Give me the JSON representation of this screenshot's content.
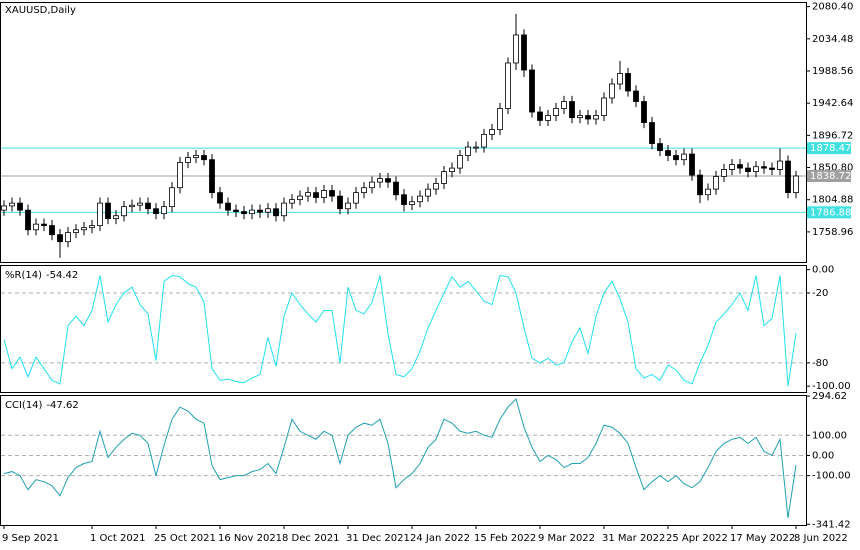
{
  "chart_data": [
    {
      "type": "candlestick",
      "title": "XAUUSD,Daily",
      "ylim": [
        1716,
        2087
      ],
      "yticks": [
        {
          "value": 2080.4,
          "label": "2080.40"
        },
        2034.48,
        1988.56,
        1942.64,
        1896.72,
        {
          "value": 1850.8,
          "label": "1850.80"
        },
        1804.88,
        1758.96
      ],
      "levels": [
        1878.47,
        1786.88
      ],
      "level_color": "#40e0e0",
      "current_price": 1838.72,
      "current_color": "#a0a0a0",
      "up_color": "#ffffff",
      "down_color": "#000000",
      "open": [
        1790,
        1796,
        1800,
        1790,
        1762,
        1770,
        1768,
        1755,
        1745,
        1758,
        1762,
        1765,
        1768,
        1800,
        1778,
        1782,
        1795,
        1797,
        1800,
        1792,
        1785,
        1795,
        1822,
        1858,
        1865,
        1868,
        1862,
        1815,
        1800,
        1790,
        1788,
        1785,
        1790,
        1787,
        1792,
        1782,
        1800,
        1805,
        1810,
        1815,
        1808,
        1818,
        1810,
        1792,
        1800,
        1815,
        1822,
        1830,
        1835,
        1830,
        1812,
        1798,
        1802,
        1810,
        1820,
        1828,
        1845,
        1850,
        1868,
        1880,
        1880,
        1898,
        1905,
        1935,
        2000,
        2040,
        1990,
        1930,
        1918,
        1925,
        1935,
        1945,
        1922,
        1925,
        1920,
        1925,
        1950,
        1970,
        1985,
        1960,
        1945,
        1915,
        1885,
        1875,
        1868,
        1862,
        1870,
        1840,
        1812,
        1820,
        1838,
        1848,
        1855,
        1850,
        1845,
        1852,
        1850,
        1848,
        1860,
        1815
      ],
      "high": [
        1804,
        1808,
        1808,
        1798,
        1778,
        1778,
        1776,
        1763,
        1766,
        1770,
        1773,
        1776,
        1808,
        1808,
        1790,
        1803,
        1805,
        1808,
        1808,
        1800,
        1803,
        1830,
        1866,
        1873,
        1876,
        1876,
        1870,
        1823,
        1808,
        1798,
        1796,
        1798,
        1798,
        1800,
        1800,
        1808,
        1813,
        1818,
        1823,
        1823,
        1826,
        1826,
        1818,
        1808,
        1823,
        1830,
        1838,
        1843,
        1843,
        1838,
        1820,
        1810,
        1818,
        1828,
        1836,
        1853,
        1858,
        1876,
        1888,
        1888,
        1906,
        1913,
        1943,
        2008,
        2070,
        2048,
        1998,
        1938,
        1933,
        1943,
        1953,
        1953,
        1933,
        1933,
        1933,
        1958,
        1978,
        2003,
        1993,
        1968,
        1953,
        1923,
        1893,
        1883,
        1876,
        1878,
        1878,
        1848,
        1828,
        1846,
        1856,
        1863,
        1863,
        1858,
        1860,
        1860,
        1858,
        1878,
        1868,
        1846
      ],
      "low": [
        1782,
        1788,
        1782,
        1754,
        1754,
        1760,
        1747,
        1722,
        1737,
        1750,
        1754,
        1757,
        1760,
        1770,
        1770,
        1774,
        1787,
        1789,
        1784,
        1777,
        1777,
        1787,
        1814,
        1850,
        1857,
        1854,
        1807,
        1792,
        1782,
        1780,
        1777,
        1777,
        1779,
        1779,
        1774,
        1774,
        1792,
        1797,
        1802,
        1800,
        1800,
        1802,
        1784,
        1784,
        1792,
        1807,
        1814,
        1822,
        1822,
        1804,
        1788,
        1790,
        1794,
        1802,
        1812,
        1820,
        1837,
        1842,
        1860,
        1872,
        1872,
        1890,
        1897,
        1927,
        1990,
        1980,
        1922,
        1910,
        1910,
        1917,
        1927,
        1914,
        1914,
        1912,
        1912,
        1917,
        1942,
        1962,
        1952,
        1937,
        1907,
        1877,
        1867,
        1860,
        1854,
        1854,
        1832,
        1800,
        1804,
        1812,
        1830,
        1840,
        1842,
        1837,
        1837,
        1842,
        1840,
        1840,
        1807,
        1807
      ],
      "close": [
        1796,
        1800,
        1790,
        1762,
        1770,
        1768,
        1755,
        1745,
        1758,
        1762,
        1765,
        1768,
        1800,
        1778,
        1782,
        1795,
        1797,
        1800,
        1792,
        1785,
        1795,
        1822,
        1858,
        1865,
        1868,
        1862,
        1815,
        1800,
        1790,
        1788,
        1785,
        1790,
        1787,
        1792,
        1782,
        1800,
        1805,
        1810,
        1815,
        1808,
        1818,
        1810,
        1792,
        1800,
        1815,
        1822,
        1830,
        1835,
        1830,
        1812,
        1798,
        1802,
        1810,
        1820,
        1828,
        1845,
        1850,
        1868,
        1880,
        1880,
        1898,
        1905,
        1935,
        2000,
        2040,
        1990,
        1930,
        1918,
        1925,
        1935,
        1945,
        1922,
        1925,
        1920,
        1925,
        1950,
        1970,
        1985,
        1960,
        1945,
        1915,
        1885,
        1875,
        1868,
        1862,
        1870,
        1840,
        1812,
        1820,
        1838,
        1848,
        1855,
        1850,
        1845,
        1852,
        1850,
        1848,
        1860,
        1815,
        1838.72
      ]
    },
    {
      "type": "line",
      "name": "%R(14)",
      "last": -54.42,
      "color": "#20e0f0",
      "ylim": [
        -105,
        4
      ],
      "yticks": [
        {
          "value": 0,
          "label": "0.00"
        },
        -20,
        -80,
        {
          "value": -100,
          "label": "-100.00"
        }
      ],
      "dashed": [
        -20,
        -80
      ],
      "values": [
        -60,
        -85,
        -75,
        -92,
        -75,
        -85,
        -95,
        -98,
        -48,
        -40,
        -48,
        -35,
        -5,
        -45,
        -30,
        -20,
        -15,
        -30,
        -38,
        -78,
        -10,
        -5,
        -6,
        -12,
        -15,
        -28,
        -85,
        -95,
        -94,
        -96,
        -97,
        -93,
        -90,
        -58,
        -83,
        -40,
        -20,
        -30,
        -38,
        -45,
        -35,
        -35,
        -80,
        -15,
        -35,
        -38,
        -28,
        -5,
        -55,
        -90,
        -92,
        -85,
        -70,
        -50,
        -35,
        -20,
        -6,
        -15,
        -10,
        -18,
        -27,
        -30,
        -5,
        -6,
        -20,
        -50,
        -76,
        -80,
        -76,
        -82,
        -80,
        -62,
        -50,
        -72,
        -40,
        -20,
        -10,
        -25,
        -45,
        -85,
        -93,
        -90,
        -95,
        -82,
        -86,
        -95,
        -98,
        -80,
        -65,
        -45,
        -38,
        -30,
        -20,
        -35,
        -5,
        -48,
        -42,
        -5,
        -100,
        -54.42
      ]
    },
    {
      "type": "line",
      "name": "CCI(14)",
      "last": -47.62,
      "color": "#1fa0b0",
      "ylim": [
        -345,
        300
      ],
      "yticks": [
        294.62,
        {
          "value": 100,
          "label": "100.00"
        },
        {
          "value": 0,
          "label": "0.00"
        },
        {
          "value": -100,
          "label": "-100.00"
        },
        -341.42
      ],
      "dashed": [
        100,
        0,
        -100
      ],
      "values": [
        -90,
        -80,
        -100,
        -170,
        -120,
        -130,
        -150,
        -200,
        -110,
        -60,
        -40,
        -30,
        120,
        -10,
        40,
        80,
        110,
        100,
        60,
        -100,
        50,
        180,
        240,
        220,
        180,
        160,
        -50,
        -120,
        -110,
        -100,
        -100,
        -80,
        -70,
        -40,
        -90,
        40,
        180,
        120,
        100,
        80,
        120,
        100,
        -40,
        100,
        140,
        160,
        150,
        180,
        60,
        -160,
        -120,
        -90,
        -40,
        40,
        80,
        180,
        160,
        120,
        110,
        120,
        100,
        90,
        180,
        240,
        280,
        140,
        40,
        -30,
        0,
        -20,
        -60,
        -40,
        -40,
        -10,
        60,
        150,
        140,
        110,
        60,
        -60,
        -170,
        -130,
        -100,
        -130,
        -100,
        -140,
        -160,
        -130,
        -60,
        20,
        60,
        80,
        90,
        60,
        90,
        20,
        0,
        80,
        -310,
        -47.62
      ],
      "xticks": [
        {
          "value": 0,
          "label": "9 Sep 2021"
        },
        {
          "value": 11,
          "label": "1 Oct 2021"
        },
        {
          "value": 19,
          "label": "25 Oct 2021"
        },
        {
          "value": 27,
          "label": "16 Nov 2021"
        },
        {
          "value": 35,
          "label": "8 Dec 2021"
        },
        {
          "value": 43,
          "label": "31 Dec 2021"
        },
        {
          "value": 51,
          "label": "24 Jan 2022"
        },
        {
          "value": 59,
          "label": "15 Feb 2022"
        },
        {
          "value": 67,
          "label": "9 Mar 2022"
        },
        {
          "value": 75,
          "label": "31 Mar 2022"
        },
        {
          "value": 83,
          "label": "25 Apr 2022"
        },
        {
          "value": 91,
          "label": "17 May 2022"
        },
        {
          "value": 99,
          "label": "8 Jun 2022"
        }
      ]
    }
  ]
}
